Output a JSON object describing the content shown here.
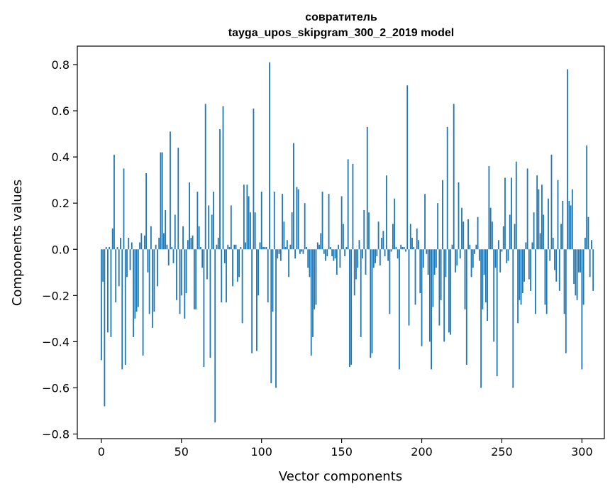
{
  "chart_data": {
    "type": "bar",
    "title_line1": "совратитель",
    "title_line2": "tayga_upos_skipgram_300_2_2019 model",
    "xlabel": "Vector components",
    "ylabel": "Components values",
    "xlim": [
      -15,
      314
    ],
    "ylim": [
      -0.82,
      0.88
    ],
    "xticks": [
      0,
      50,
      100,
      150,
      200,
      250,
      300
    ],
    "xtick_labels": [
      "0",
      "50",
      "100",
      "150",
      "200",
      "250",
      "300"
    ],
    "yticks": [
      -0.8,
      -0.6,
      -0.4,
      -0.2,
      0.0,
      0.2,
      0.4,
      0.6,
      0.8
    ],
    "ytick_labels": [
      "−0.8",
      "−0.6",
      "−0.4",
      "−0.2",
      "0.0",
      "0.2",
      "0.4",
      "0.6",
      "0.8"
    ],
    "bar_color": "#1f77b4",
    "grid": false,
    "legend": "none",
    "values": [
      -0.48,
      -0.14,
      -0.68,
      0.01,
      -0.36,
      0.01,
      -0.38,
      0.09,
      0.41,
      -0.23,
      0.01,
      -0.16,
      0.05,
      -0.52,
      0.35,
      -0.5,
      -0.12,
      0.05,
      -0.09,
      0.03,
      -0.38,
      -0.3,
      -0.27,
      -0.25,
      0.03,
      0.07,
      -0.46,
      0.06,
      0.33,
      -0.1,
      -0.28,
      0.1,
      -0.34,
      -0.27,
      0.02,
      -0.16,
      0.05,
      0.42,
      0.42,
      0.07,
      0.17,
      0.02,
      -0.07,
      0.51,
      0.01,
      -0.06,
      0.15,
      -0.22,
      0.44,
      -0.28,
      -0.2,
      0.1,
      -0.3,
      -0.19,
      0.04,
      0.29,
      0.05,
      0.06,
      -0.26,
      -0.26,
      0.25,
      0.1,
      0.01,
      -0.08,
      -0.51,
      0.63,
      -0.13,
      0.19,
      -0.47,
      0.15,
      0.25,
      -0.75,
      0.02,
      0.05,
      0.52,
      -0.23,
      0.62,
      -0.06,
      -0.23,
      0.02,
      0.01,
      0.19,
      -0.16,
      0.02,
      0.02,
      -0.14,
      -0.12,
      0.01,
      -0.32,
      0.28,
      0.03,
      0.28,
      0.23,
      0.16,
      -0.45,
      0.61,
      0.16,
      -0.44,
      -0.2,
      0.03,
      0.25,
      0.01,
      0.01,
      0.01,
      -0.23,
      0.81,
      -0.58,
      -0.27,
      0.25,
      -0.6,
      -0.04,
      -0.02,
      -0.05,
      0.24,
      0.12,
      0.01,
      0.04,
      -0.12,
      0.02,
      0.16,
      0.46,
      -0.04,
      0.27,
      0.26,
      -0.02,
      -0.01,
      -0.02,
      0.2,
      0.01,
      -0.08,
      -0.12,
      -0.46,
      -0.38,
      -0.26,
      -0.24,
      0.03,
      0.02,
      0.07,
      0.25,
      -0.02,
      -0.05,
      -0.03,
      0.24,
      0.01,
      -0.03,
      -0.05,
      -0.04,
      -0.11,
      0.02,
      -0.08,
      0.23,
      0.11,
      -0.03,
      0.01,
      0.39,
      -0.51,
      -0.5,
      0.37,
      -0.2,
      -0.13,
      -0.08,
      0.04,
      -0.38,
      -0.04,
      0.17,
      -0.11,
      0.53,
      0.16,
      -0.47,
      -0.45,
      -0.08,
      -0.06,
      -0.03,
      0.12,
      -0.07,
      0.05,
      0.08,
      -0.03,
      0.32,
      -0.05,
      -0.28,
      -0.01,
      0.11,
      0.22,
      0.01,
      -0.04,
      -0.52,
      0.02,
      0.01,
      0.01,
      -0.01,
      0.71,
      -0.33,
      0.11,
      0.05,
      0.01,
      -0.24,
      0.09,
      0.04,
      -0.19,
      -0.42,
      -0.08,
      0.24,
      -0.02,
      -0.11,
      -0.4,
      -0.52,
      -0.25,
      -0.11,
      -0.08,
      0.2,
      -0.33,
      -0.22,
      0.3,
      -0.4,
      -0.12,
      0.53,
      -0.36,
      -0.37,
      0.02,
      0.63,
      -0.1,
      -0.07,
      0.29,
      -0.04,
      0.18,
      0.12,
      -0.26,
      -0.5,
      0.13,
      0.02,
      -0.12,
      -0.08,
      -0.02,
      0.02,
      0.14,
      -0.05,
      -0.6,
      -0.26,
      -0.11,
      -0.23,
      -0.31,
      0.36,
      0.18,
      0.12,
      -0.4,
      -0.08,
      -0.55,
      0.04,
      -0.1,
      -0.01,
      0.1,
      0.31,
      -0.06,
      -0.05,
      0.15,
      0.31,
      -0.6,
      0.11,
      0.38,
      -0.32,
      -0.22,
      -0.24,
      -0.19,
      -0.14,
      0.03,
      0.35,
      -0.13,
      -0.18,
      0.03,
      0.16,
      -0.28,
      0.32,
      0.26,
      0.07,
      0.28,
      0.15,
      -0.24,
      -0.28,
      0.22,
      -0.05,
      0.41,
      0.05,
      -0.09,
      -0.14,
      0.3,
      -0.18,
      0.11,
      0.21,
      -0.28,
      -0.45,
      0.78,
      0.21,
      0.19,
      0.26,
      -0.15,
      -0.2,
      -0.22,
      -0.1,
      -0.1,
      -0.52,
      -0.24,
      0.05,
      0.45,
      0.14,
      -0.12,
      0.04,
      -0.18
    ]
  }
}
